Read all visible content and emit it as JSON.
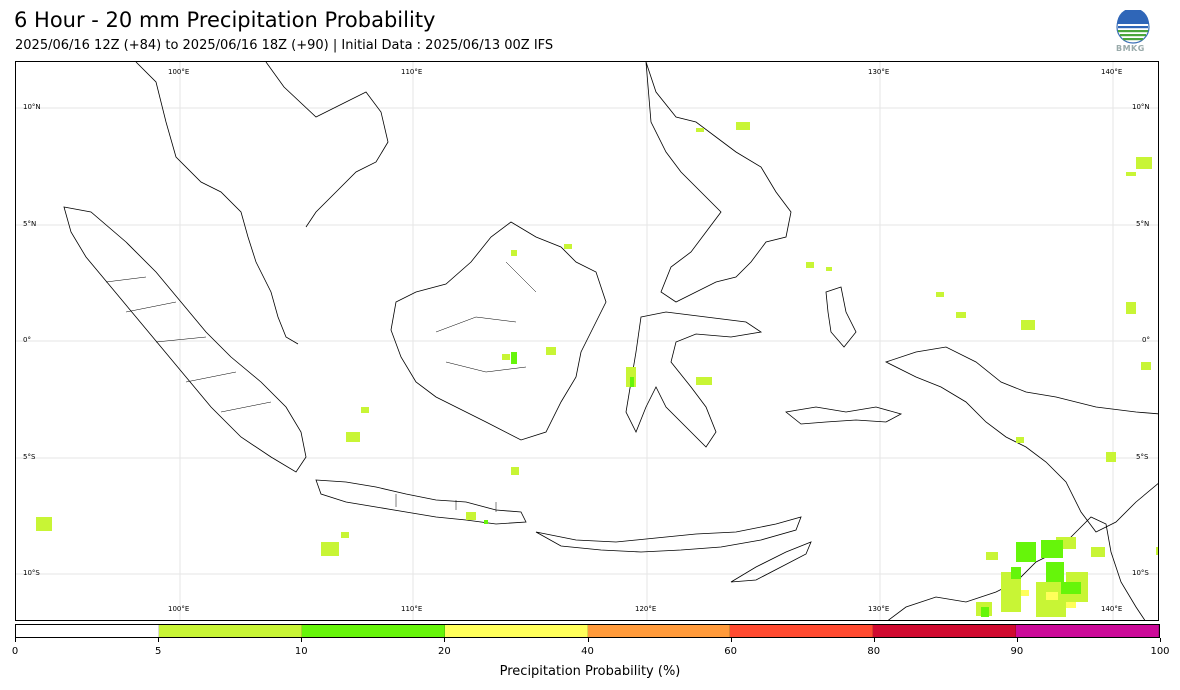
{
  "header": {
    "title": "6 Hour - 20 mm Precipitation Probability",
    "subtitle": "2025/06/16 12Z (+84) to 2025/06/16 18Z (+90) | Initial Data : 2025/06/13 00Z IFS"
  },
  "logo": {
    "text": "BMKG"
  },
  "map": {
    "lon_labels_top": [
      "100°E",
      "110°E",
      "130°E",
      "140°E"
    ],
    "lon_labels_bottom": [
      "100°E",
      "110°E",
      "120°E",
      "130°E",
      "140°E"
    ],
    "lat_labels_left": [
      "10°N",
      "5°N",
      "0°",
      "5°S",
      "10°S"
    ],
    "lat_labels_right": [
      "10°N",
      "5°N",
      "0°",
      "5°S",
      "10°S"
    ]
  },
  "colorbar": {
    "label": "Precipitation Probability (%)",
    "ticks": [
      "0",
      "5",
      "10",
      "20",
      "40",
      "60",
      "80",
      "90",
      "100"
    ],
    "colors": [
      "#ffffff",
      "#c8f535",
      "#66f50a",
      "#ffff5a",
      "#ff9a3a",
      "#ff4a30",
      "#d00a30",
      "#cc0a99"
    ]
  }
}
